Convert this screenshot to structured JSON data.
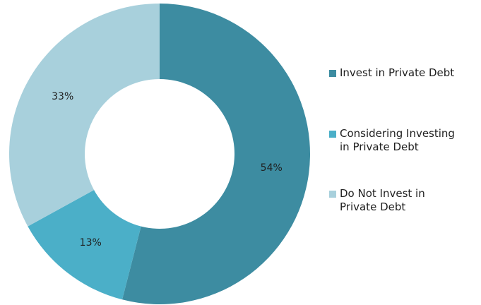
{
  "chart_data": {
    "type": "pie",
    "title": "",
    "series": [
      {
        "name": "Invest in Private Debt",
        "value": 54,
        "label": "54%",
        "color": "#3d8ca1"
      },
      {
        "name": "Considering Investing\nin Private Debt",
        "value": 13,
        "label": "13%",
        "color": "#4bafc8"
      },
      {
        "name": "Do Not Invest in\nPrivate Debt",
        "value": 33,
        "label": "33%",
        "color": "#a8d0dc"
      }
    ],
    "donut": true,
    "legend": "right",
    "start_angle": "top, clockwise"
  },
  "legend": {
    "items": [
      {
        "label": "Invest in Private Debt",
        "color": "#3d8ca1"
      },
      {
        "label": "Considering Investing\nin Private Debt",
        "color": "#4bafc8"
      },
      {
        "label": "Do Not Invest in\nPrivate Debt",
        "color": "#a8d0dc"
      }
    ]
  }
}
